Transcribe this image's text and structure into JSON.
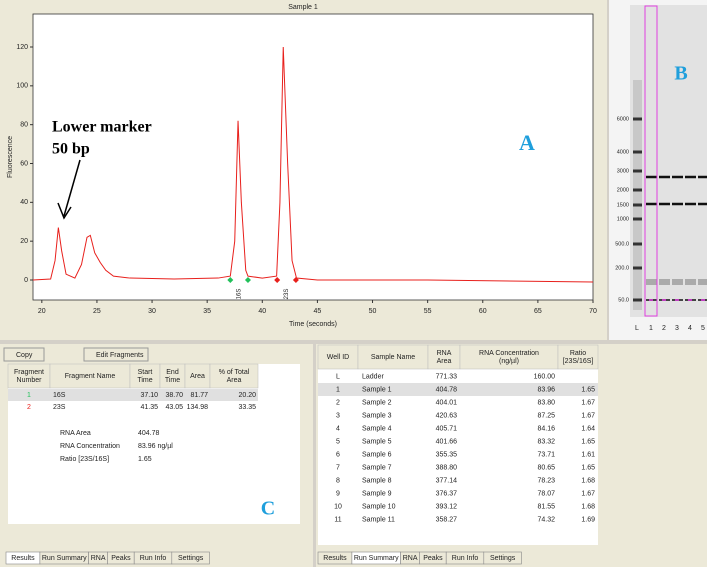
{
  "chart_data": {
    "type": "line",
    "title": "Sample 1",
    "x_label": "Time (seconds)",
    "y_label": "Fluorescence",
    "xlim": [
      19.2,
      70
    ],
    "ylim": [
      -10.3,
      137
    ],
    "xticks": [
      20,
      25,
      30,
      35,
      40,
      45,
      50,
      55,
      60,
      65,
      70
    ],
    "yticks": [
      0,
      20,
      40,
      60,
      80,
      100,
      120
    ],
    "series": [
      {
        "color": "#e8201c",
        "x": [
          19.2,
          20.8,
          21.2,
          21.5,
          21.8,
          22.2,
          23,
          23.6,
          24.1,
          24.4,
          24.8,
          25.3,
          25.8,
          26.5,
          28,
          32,
          36,
          37.1,
          37.5,
          37.8,
          38.1,
          38.5,
          38.7,
          40,
          41.3,
          41.6,
          41.9,
          42.3,
          42.7,
          43.1,
          45,
          55,
          70
        ],
        "values": [
          0,
          0.5,
          10,
          27,
          15,
          3,
          1,
          8,
          22,
          23,
          14,
          9,
          5,
          2,
          1,
          0.5,
          1,
          2,
          20,
          82,
          40,
          5,
          2,
          1,
          2,
          40,
          120,
          60,
          10,
          1,
          0,
          0,
          -1
        ]
      }
    ],
    "annotations": [
      "Lower marker",
      "50 bp",
      "A"
    ],
    "peak_labels": [
      "16S",
      "23S"
    ]
  },
  "gel": {
    "letter": "B",
    "ladder_labels": [
      "6000",
      "4000",
      "3000",
      "2000",
      "1500",
      "1000",
      "500.0",
      "200.0",
      "50.0"
    ],
    "lanes": [
      "L",
      "1",
      "2",
      "3",
      "4",
      "5"
    ]
  },
  "left_panel": {
    "toolbar": [
      "Copy",
      "Edit Fragments"
    ],
    "headers": [
      [
        "Fragment",
        "Number"
      ],
      [
        "Fragment Name"
      ],
      [
        "Start",
        "Time"
      ],
      [
        "End",
        "Time"
      ],
      [
        "Area"
      ],
      [
        "% of Total",
        "Area"
      ]
    ],
    "rows": [
      [
        "1",
        "16S",
        "37.10",
        "38.70",
        "81.77",
        "20.20"
      ],
      [
        "2",
        "23S",
        "41.35",
        "43.05",
        "134.98",
        "33.35"
      ]
    ],
    "summary": [
      [
        "RNA Area",
        "404.78"
      ],
      [
        "RNA Concentration",
        "83.96 ng/µl"
      ],
      [
        "Ratio [23S/16S]",
        "1.65"
      ]
    ],
    "letter": "C",
    "tabs": [
      "Results",
      "Run Summary",
      "RNA",
      "Peaks",
      "Run Info",
      "Settings"
    ]
  },
  "right_panel": {
    "headers": [
      [
        "Well ID"
      ],
      [
        "Sample Name"
      ],
      [
        "RNA",
        "Area"
      ],
      [
        "RNA  Concentration",
        "(ng/µl)"
      ],
      [
        "Ratio",
        "[23S/16S]"
      ]
    ],
    "rows": [
      [
        "L",
        "Ladder",
        "771.33",
        "160.00",
        ""
      ],
      [
        "1",
        "Sample 1",
        "404.78",
        "83.96",
        "1.65"
      ],
      [
        "2",
        "Sample 2",
        "404.01",
        "83.80",
        "1.67"
      ],
      [
        "3",
        "Sample 3",
        "420.63",
        "87.25",
        "1.67"
      ],
      [
        "4",
        "Sample 4",
        "405.71",
        "84.16",
        "1.64"
      ],
      [
        "5",
        "Sample 5",
        "401.66",
        "83.32",
        "1.65"
      ],
      [
        "6",
        "Sample 6",
        "355.35",
        "73.71",
        "1.61"
      ],
      [
        "7",
        "Sample 7",
        "388.80",
        "80.65",
        "1.65"
      ],
      [
        "8",
        "Sample 8",
        "377.14",
        "78.23",
        "1.68"
      ],
      [
        "9",
        "Sample 9",
        "376.37",
        "78.07",
        "1.67"
      ],
      [
        "10",
        "Sample 10",
        "393.12",
        "81.55",
        "1.68"
      ],
      [
        "11",
        "Sample 11",
        "358.27",
        "74.32",
        "1.69"
      ]
    ],
    "tabs": [
      "Results",
      "Run Summary",
      "RNA",
      "Peaks",
      "Run Info",
      "Settings"
    ]
  }
}
